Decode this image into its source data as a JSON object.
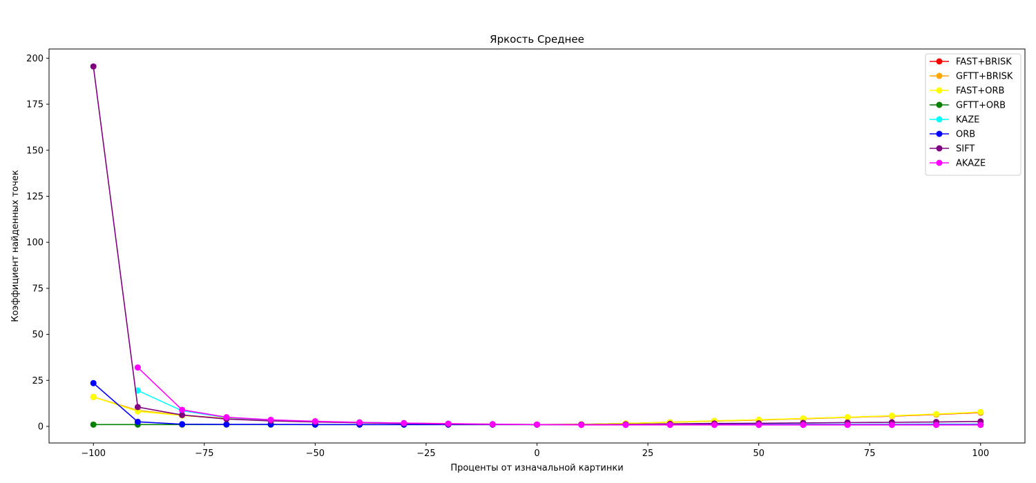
{
  "chart_data": {
    "type": "line",
    "title": "Яркость Среднее",
    "xlabel": "Проценты от изначальной картинки",
    "ylabel": "Коэффициент найденных точек",
    "xlim": [
      -110,
      110
    ],
    "ylim": [
      -9,
      205
    ],
    "xticks": [
      -100,
      -75,
      -50,
      -25,
      0,
      25,
      50,
      75,
      100
    ],
    "xtick_labels": [
      "−100",
      "−75",
      "−50",
      "−25",
      "0",
      "25",
      "50",
      "75",
      "100"
    ],
    "yticks": [
      0,
      25,
      50,
      75,
      100,
      125,
      150,
      175,
      200
    ],
    "ytick_labels": [
      "0",
      "25",
      "50",
      "75",
      "100",
      "125",
      "150",
      "175",
      "200"
    ],
    "grid": false,
    "legend_position": "top-right",
    "series": [
      {
        "name": "FAST+BRISK",
        "color": "#ff0000",
        "x": [
          -100,
          -90,
          -80,
          -70,
          -60,
          -50,
          -40,
          -30,
          -20,
          -10,
          0,
          10,
          20,
          30,
          40,
          50,
          60,
          70,
          80,
          90,
          100
        ],
        "y": [
          16,
          8.5,
          6,
          4.3,
          3.3,
          2.6,
          2.1,
          1.7,
          1.4,
          1.2,
          1,
          1.1,
          1.6,
          2.2,
          2.9,
          3.5,
          4.2,
          4.9,
          5.6,
          6.5,
          7.5
        ]
      },
      {
        "name": "GFTT+BRISK",
        "color": "#ffa500",
        "x": [
          -100,
          -90,
          -80,
          -70,
          -60,
          -50,
          -40,
          -30,
          -20,
          -10,
          0,
          10,
          20,
          30,
          40,
          50,
          60,
          70,
          80,
          90,
          100
        ],
        "y": [
          16,
          8.7,
          6.1,
          4.4,
          3.4,
          2.7,
          2.2,
          1.8,
          1.5,
          1.2,
          1,
          1.1,
          1.6,
          2.3,
          3,
          3.6,
          4.3,
          5,
          5.7,
          6.6,
          7.7
        ]
      },
      {
        "name": "FAST+ORB",
        "color": "#ffff00",
        "x": [
          -100,
          -90,
          -80,
          -70,
          -60,
          -50,
          -40,
          -30,
          -20,
          -10,
          0,
          10,
          20,
          30,
          40,
          50,
          60,
          70,
          80,
          90,
          100
        ],
        "y": [
          16,
          8.2,
          5.9,
          4.2,
          3.2,
          2.5,
          2,
          1.6,
          1.3,
          1.1,
          1,
          1.1,
          1.6,
          2.2,
          3,
          3.6,
          4.3,
          5,
          5.8,
          6.7,
          7.8
        ]
      },
      {
        "name": "GFTT+ORB",
        "color": "#008000",
        "x": [
          -100,
          -90,
          -80,
          -70,
          -60,
          -50,
          -40,
          -30,
          -20,
          -10,
          0,
          10,
          20,
          30,
          40,
          50,
          60,
          70,
          80,
          90,
          100
        ],
        "y": [
          1,
          1,
          1,
          1,
          1,
          1,
          1,
          1,
          1,
          1,
          1,
          1,
          1,
          1,
          1,
          1,
          1,
          1,
          1,
          1,
          1
        ]
      },
      {
        "name": "KAZE",
        "color": "#00ffff",
        "x": [
          -90,
          -80,
          -70,
          -60,
          -50,
          -40,
          -30,
          -20,
          -10,
          0,
          10,
          20,
          30,
          40,
          50,
          60,
          70,
          80,
          90,
          100
        ],
        "y": [
          19.5,
          8.5,
          4.8,
          3.5,
          2.7,
          2.2,
          1.8,
          1.4,
          1.2,
          1,
          0.9,
          0.9,
          1,
          1,
          1.1,
          1.1,
          1.1,
          1.1,
          1.2,
          1.2
        ]
      },
      {
        "name": "ORB",
        "color": "#0000ff",
        "x": [
          -100,
          -90,
          -80,
          -70,
          -60,
          -50,
          -40,
          -30,
          -20,
          -10,
          0,
          10,
          20,
          30,
          40,
          50,
          60,
          70,
          80,
          90,
          100
        ],
        "y": [
          23.5,
          2.5,
          1.2,
          1.1,
          1.1,
          1,
          1,
          1,
          1,
          1,
          1,
          1,
          1,
          1,
          1,
          1,
          1,
          1,
          1,
          1,
          1
        ]
      },
      {
        "name": "SIFT",
        "color": "#800080",
        "x": [
          -100,
          -90,
          -80,
          -70,
          -60,
          -50,
          -40,
          -30,
          -20,
          -10,
          0,
          10,
          20,
          30,
          40,
          50,
          60,
          70,
          80,
          90,
          100
        ],
        "y": [
          195.5,
          10.5,
          6.2,
          4,
          3,
          2.4,
          2,
          1.6,
          1.3,
          1.1,
          1,
          1,
          1.1,
          1.4,
          1.6,
          1.7,
          1.9,
          2.1,
          2.2,
          2.4,
          2.7
        ]
      },
      {
        "name": "AKAZE",
        "color": "#ff00ff",
        "x": [
          -90,
          -80,
          -70,
          -60,
          -50,
          -40,
          -30,
          -20,
          -10,
          0,
          10,
          20,
          30,
          40,
          50,
          60,
          70,
          80,
          90,
          100
        ],
        "y": [
          32,
          9,
          5,
          3.6,
          2.8,
          2.2,
          1.8,
          1.5,
          1.2,
          1,
          0.8,
          0.8,
          0.8,
          0.8,
          0.8,
          0.8,
          0.8,
          0.8,
          0.8,
          0.8
        ]
      }
    ]
  }
}
